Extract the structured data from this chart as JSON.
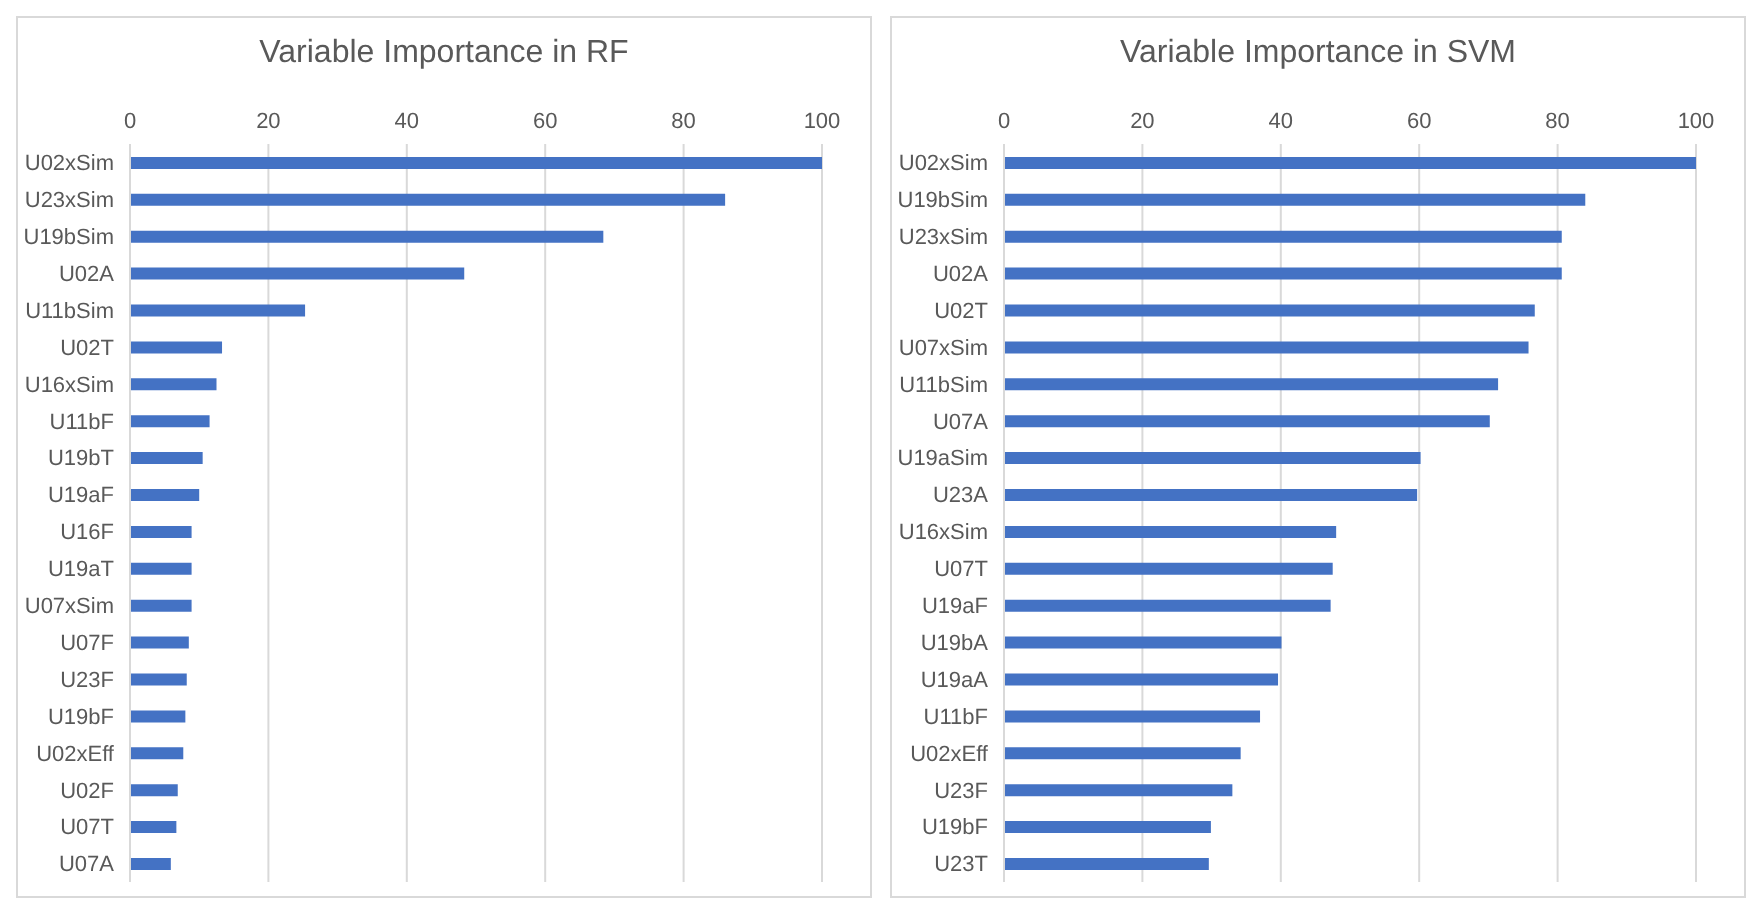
{
  "chart_data": [
    {
      "type": "bar",
      "orientation": "horizontal",
      "title": "Variable Importance in RF",
      "categories": [
        "U02xSim",
        "U23xSim",
        "U19bSim",
        "U02A",
        "U11bSim",
        "U02T",
        "U16xSim",
        "U11bF",
        "U19bT",
        "U19aF",
        "U16F",
        "U19aT",
        "U07xSim",
        "U07F",
        "U23F",
        "U19bF",
        "U02xEff",
        "U02F",
        "U07T",
        "U07A"
      ],
      "values": [
        100,
        86,
        68.4,
        48.3,
        25.3,
        13.3,
        12.5,
        11.5,
        10.5,
        10,
        8.9,
        8.9,
        8.9,
        8.5,
        8.2,
        8,
        7.7,
        6.9,
        6.7,
        5.9
      ],
      "color": "#4472c4",
      "xlim": [
        0,
        100
      ],
      "xticks": [
        0,
        20,
        40,
        60,
        80,
        100
      ],
      "grid": "x",
      "legend": false
    },
    {
      "type": "bar",
      "orientation": "horizontal",
      "title": "Variable Importance in SVM",
      "categories": [
        "U02xSim",
        "U19bSim",
        "U23xSim",
        "U02A",
        "U02T",
        "U07xSim",
        "U11bSim",
        "U07A",
        "U19aSim",
        "U23A",
        "U16xSim",
        "U07T",
        "U19aF",
        "U19bA",
        "U19aA",
        "U11bF",
        "U02xEff",
        "U23F",
        "U19bF",
        "U23T"
      ],
      "values": [
        100,
        84,
        80.6,
        80.6,
        76.7,
        75.8,
        71.4,
        70.2,
        60.2,
        59.7,
        48,
        47.5,
        47.2,
        40.1,
        39.6,
        37,
        34.2,
        33,
        29.9,
        29.6
      ],
      "color": "#4472c4",
      "xlim": [
        0,
        100
      ],
      "xticks": [
        0,
        20,
        40,
        60,
        80,
        100
      ],
      "grid": "x",
      "legend": false
    }
  ]
}
